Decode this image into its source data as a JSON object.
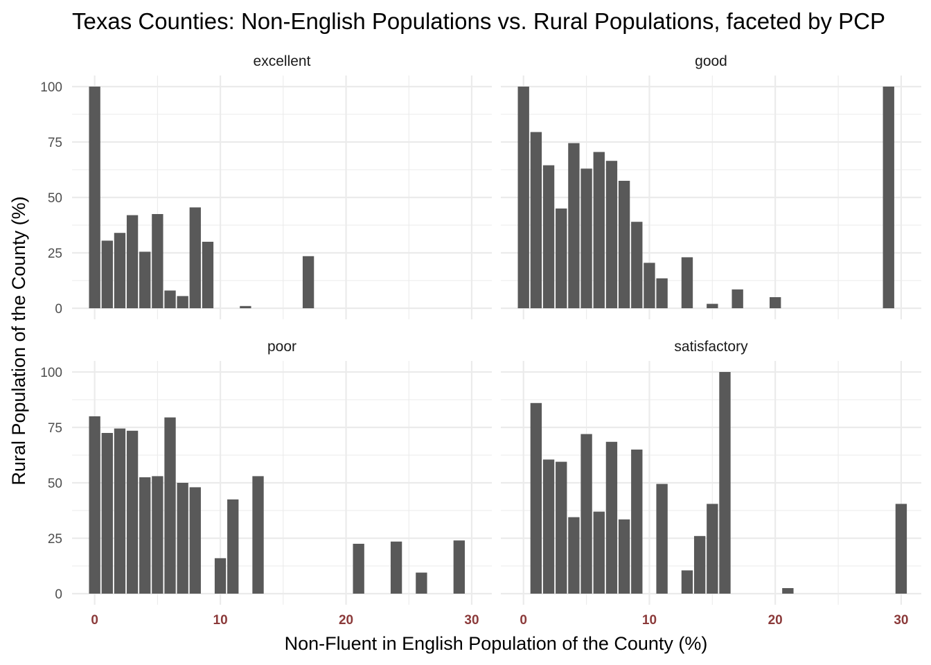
{
  "chart_data": {
    "type": "bar",
    "title": "Texas Counties: Non-English Populations vs. Rural Populations, faceted by PCP",
    "xlabel": "Non-Fluent in English Population of the County (%)",
    "ylabel": "Rural Population of the County (%)",
    "xlim": [
      -1.8,
      31.6
    ],
    "ylim": [
      -5,
      105
    ],
    "x_ticks": [
      0,
      10,
      20,
      30
    ],
    "x_tick_labels": [
      "0",
      "10",
      "20",
      "30"
    ],
    "y_ticks": [
      0,
      25,
      50,
      75,
      100
    ],
    "y_tick_labels": [
      "0",
      "25",
      "50",
      "75",
      "100"
    ],
    "x_tick_color": "#8b3a3a",
    "bar_color": "#595959",
    "grid": true,
    "bar_width": 0.9,
    "facets": [
      {
        "name": "excellent",
        "x": [
          0,
          1,
          2,
          3,
          4,
          5,
          6,
          7,
          8,
          9,
          12,
          17
        ],
        "values": [
          100,
          30.5,
          34,
          42,
          25.5,
          42.5,
          8,
          5.5,
          45.5,
          30,
          1,
          23.5
        ]
      },
      {
        "name": "good",
        "x": [
          0,
          1,
          2,
          3,
          4,
          5,
          6,
          7,
          8,
          9,
          10,
          11,
          13,
          15,
          17,
          20,
          29
        ],
        "values": [
          100,
          79.5,
          64.5,
          45,
          74.5,
          63,
          70.5,
          66.5,
          57.5,
          39,
          20.5,
          13.5,
          23,
          2,
          8.5,
          5,
          100
        ]
      },
      {
        "name": "poor",
        "x": [
          0,
          1,
          2,
          3,
          4,
          5,
          6,
          7,
          8,
          10,
          11,
          13,
          21,
          24,
          26,
          29
        ],
        "values": [
          80,
          72.5,
          74.5,
          73.5,
          52.5,
          53,
          79.5,
          50,
          48,
          16,
          42.5,
          53,
          22.5,
          23.5,
          9.5,
          24
        ]
      },
      {
        "name": "satisfactory",
        "x": [
          1,
          2,
          3,
          4,
          5,
          6,
          7,
          8,
          9,
          11,
          13,
          14,
          15,
          16,
          21,
          30
        ],
        "values": [
          86,
          60.5,
          59.5,
          34.5,
          72,
          37,
          68.5,
          33.5,
          65,
          49.5,
          10.5,
          26,
          40.5,
          100,
          2.5,
          40.5
        ]
      }
    ]
  }
}
